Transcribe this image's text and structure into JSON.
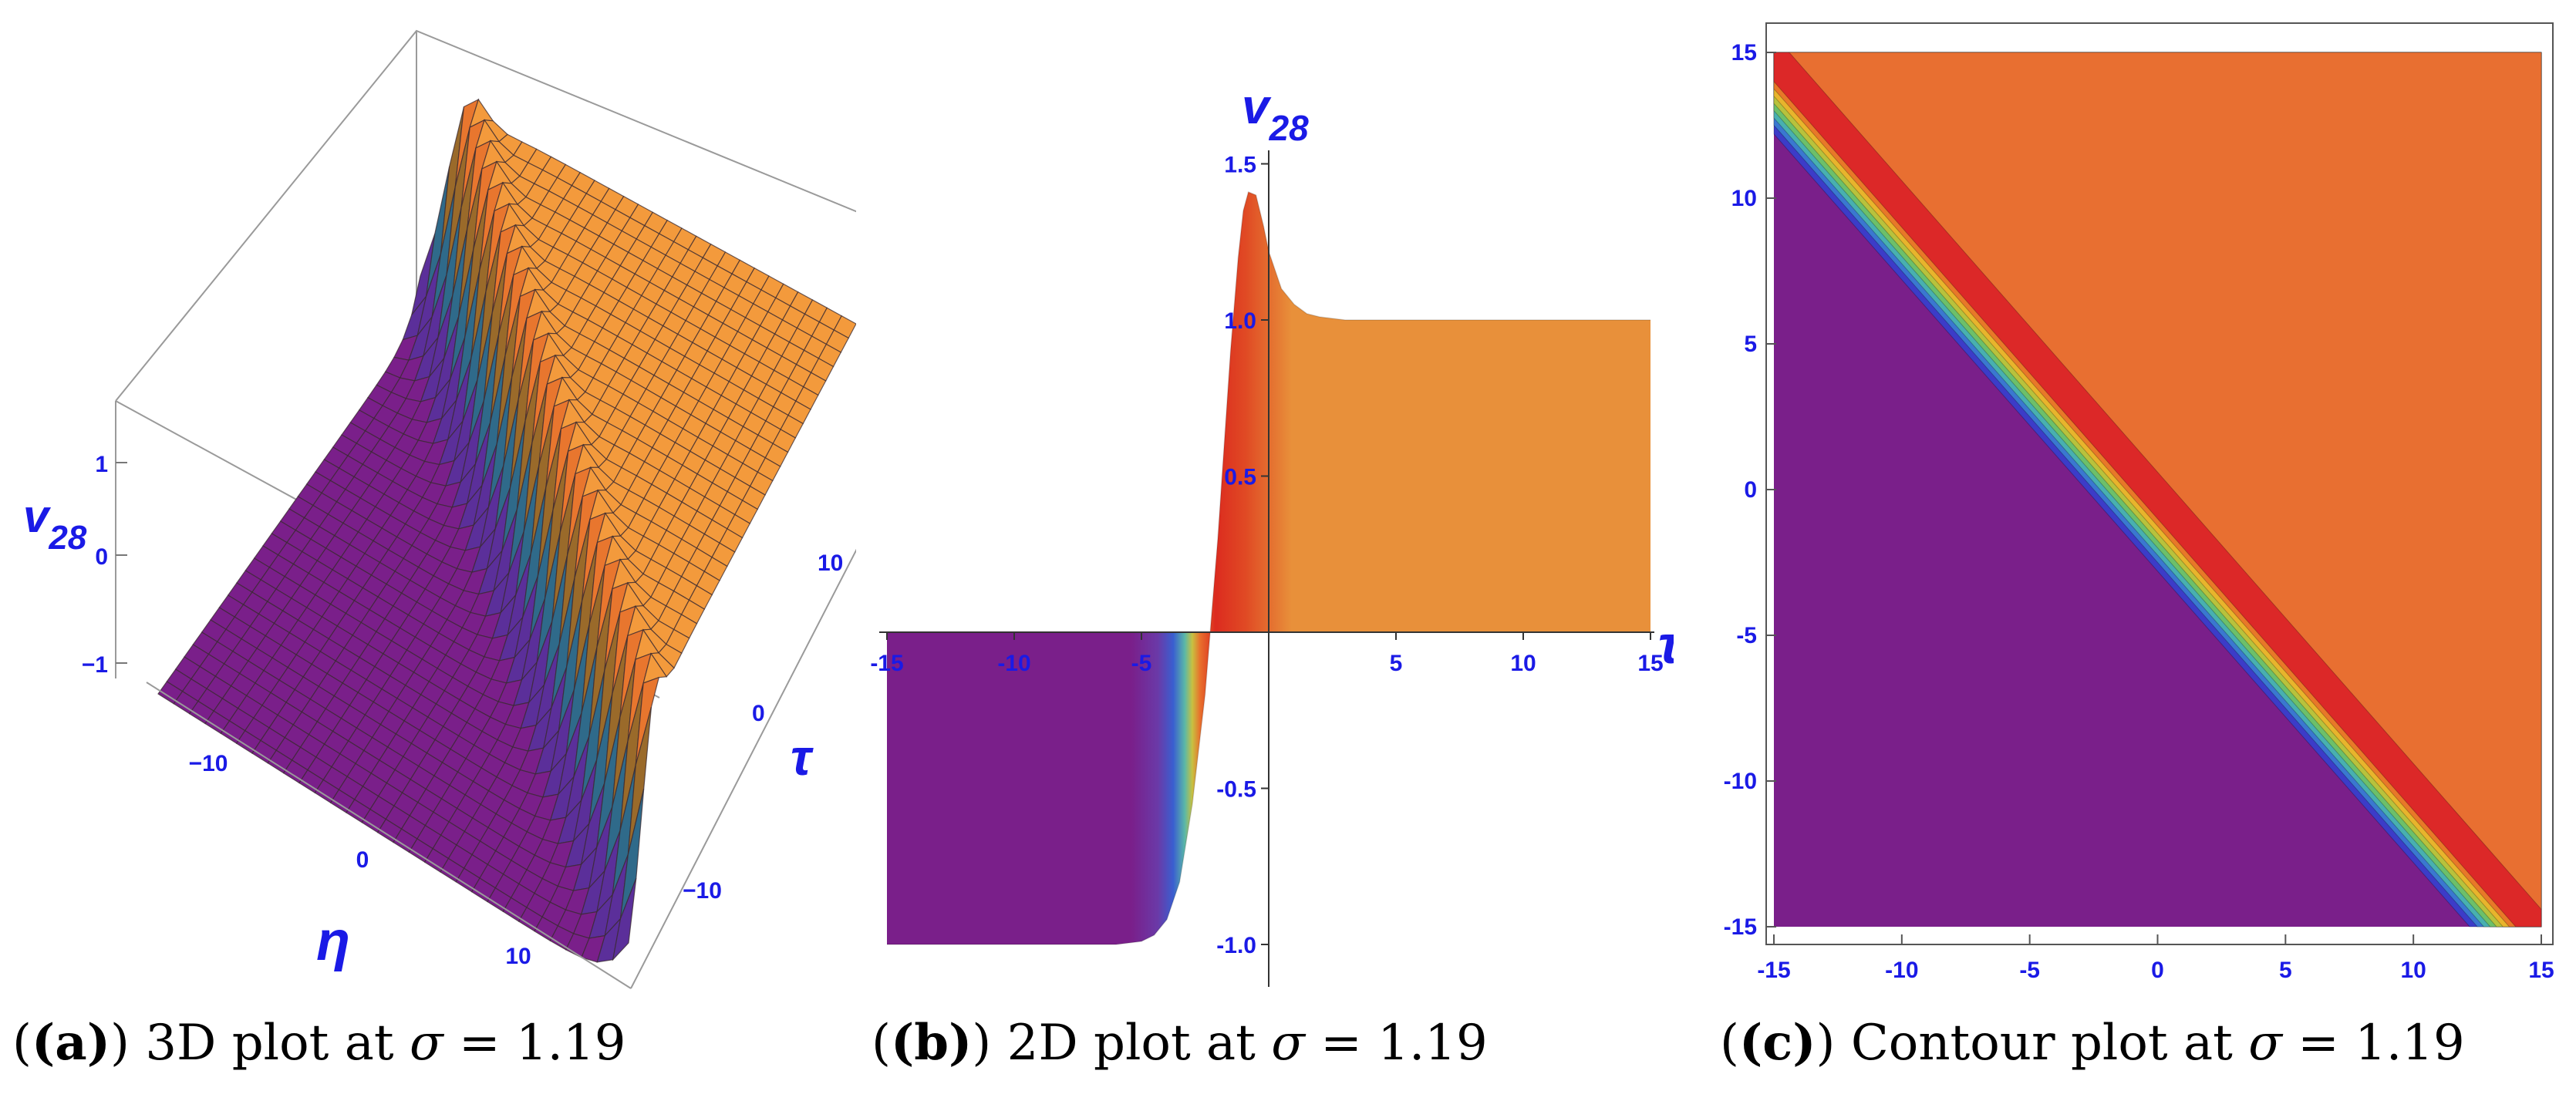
{
  "chart_data": [
    {
      "type": "area",
      "subtype": "3d-surface",
      "label": "(a)",
      "caption_text": "3D plot at",
      "caption_symbol": "σ",
      "caption_value": "= 1.19",
      "z_axis_label": "v",
      "z_axis_sub": "28",
      "x_axis_label": "η",
      "y_axis_label": "τ",
      "z_ticks": [
        "1",
        "0",
        "−1"
      ],
      "x_ticks": [
        "−10",
        "0",
        "10"
      ],
      "y_ticks": [
        "10",
        "0",
        "−10"
      ],
      "low_plateau": -1,
      "high_plateau": 1,
      "peak": 1.4,
      "colors": {
        "low": "#7a1f8a",
        "high": "#f39a3c",
        "peak": "#e0281e"
      }
    },
    {
      "type": "line",
      "subtype": "2d-filled",
      "label": "(b)",
      "caption_text": "2D plot at",
      "caption_symbol": "σ",
      "caption_value": "= 1.19",
      "y_axis_label": "v",
      "y_axis_sub": "28",
      "x_axis_label": "τ",
      "xlim": [
        -15,
        15
      ],
      "ylim": [
        -1.1,
        1.55
      ],
      "x_ticks": [
        -15,
        -10,
        -5,
        5,
        10,
        15
      ],
      "x_tick_labels": [
        "-15",
        "-10",
        "-5",
        "5",
        "10",
        "15"
      ],
      "y_ticks": [
        -1.0,
        -0.5,
        0.5,
        1.0,
        1.5
      ],
      "y_tick_labels": [
        "-1.0",
        "-0.5",
        "0.5",
        "1.0",
        "1.5"
      ],
      "x": [
        -15,
        -10,
        -6,
        -5,
        -4.5,
        -4,
        -3.5,
        -3,
        -2.5,
        -2,
        -1.5,
        -1.2,
        -1,
        -0.8,
        -0.5,
        -0.2,
        0,
        0.5,
        1,
        1.5,
        2,
        3,
        4,
        5,
        8,
        15
      ],
      "y": [
        -1.0,
        -1.0,
        -1.0,
        -0.99,
        -0.97,
        -0.92,
        -0.8,
        -0.55,
        -0.2,
        0.3,
        0.9,
        1.2,
        1.35,
        1.41,
        1.4,
        1.3,
        1.22,
        1.1,
        1.05,
        1.02,
        1.01,
        1.0,
        1.0,
        1.0,
        1.0,
        1.0
      ],
      "colors": {
        "low": "#7a1f8a",
        "high": "#e8903a",
        "peak": "#dc2b1f"
      }
    },
    {
      "type": "heatmap",
      "subtype": "contour",
      "label": "(c)",
      "caption_text": "Contour plot at",
      "caption_symbol": "σ",
      "caption_value": "= 1.19",
      "xlim": [
        -15,
        15
      ],
      "ylim": [
        -15,
        15
      ],
      "x_ticks": [
        -15,
        -10,
        -5,
        0,
        5,
        10,
        15
      ],
      "x_tick_labels": [
        "-15",
        "-10",
        "-5",
        "0",
        "5",
        "10",
        "15"
      ],
      "y_ticks": [
        -15,
        -10,
        -5,
        0,
        5,
        10,
        15
      ],
      "y_tick_labels": [
        "-15",
        "-10",
        "-5",
        "0",
        "5",
        "10",
        "15"
      ],
      "boundary_offset": -2,
      "bands": [
        {
          "offset": -2.8,
          "color": "#3c3cc8"
        },
        {
          "offset": -2.5,
          "color": "#3a78d0"
        },
        {
          "offset": -2.25,
          "color": "#48b0b0"
        },
        {
          "offset": -2.0,
          "color": "#6cc06a"
        },
        {
          "offset": -1.75,
          "color": "#b8c23c"
        },
        {
          "offset": -1.5,
          "color": "#e8b42c"
        },
        {
          "offset": -1.25,
          "color": "#e87828"
        },
        {
          "offset": -1.0,
          "color": "#dc2828"
        },
        {
          "offset": 0.6,
          "color": "#e86f31"
        }
      ],
      "colors": {
        "low": "#7a1f8a",
        "high": "#e86f31"
      }
    }
  ]
}
